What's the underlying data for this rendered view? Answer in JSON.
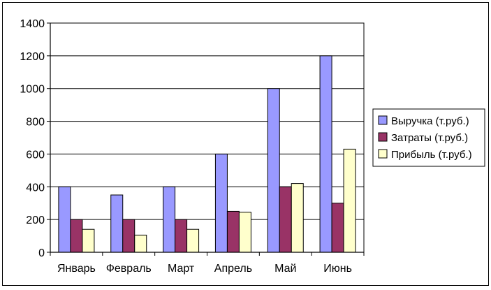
{
  "chart_data": {
    "type": "bar",
    "title": "",
    "xlabel": "",
    "ylabel": "",
    "ylim": [
      0,
      1400
    ],
    "yticks": [
      0,
      200,
      400,
      600,
      800,
      1000,
      1200,
      1400
    ],
    "grid": "horizontal",
    "legend_position": "right",
    "categories": [
      "Январь",
      "Февраль",
      "Март",
      "Апрель",
      "Май",
      "Июнь"
    ],
    "series": [
      {
        "name": "Выручка (т.руб.)",
        "color": "#9999ff",
        "values": [
          400,
          350,
          400,
          600,
          1000,
          1200
        ]
      },
      {
        "name": "Затраты (т.руб.)",
        "color": "#993366",
        "values": [
          200,
          200,
          200,
          250,
          400,
          300
        ]
      },
      {
        "name": "Прибыль (т.руб.)",
        "color": "#ffffcc",
        "values": [
          140,
          105,
          140,
          245,
          420,
          630
        ]
      }
    ]
  }
}
